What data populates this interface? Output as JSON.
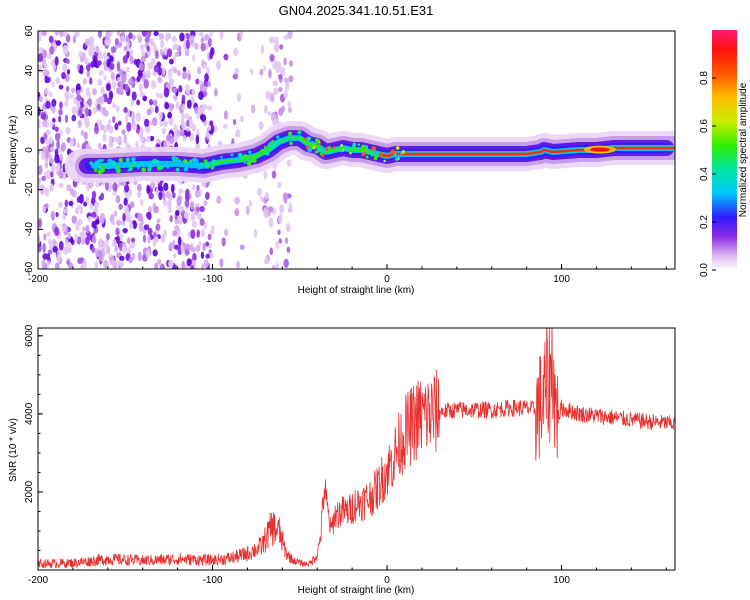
{
  "chart_data": [
    {
      "type": "heatmap",
      "title": "GN04.2025.341.10.51.E31",
      "xlabel": "Height of straight line (km)",
      "ylabel": "Frequency (Hz)",
      "xlim": [
        -200,
        165
      ],
      "ylim": [
        -60,
        60
      ],
      "xticks": [
        -200,
        -100,
        0,
        100
      ],
      "yticks": [
        -60,
        -40,
        -20,
        0,
        20,
        40,
        60
      ],
      "ridge": {
        "x": [
          -172,
          -160,
          -140,
          -120,
          -105,
          -95,
          -85,
          -75,
          -68,
          -62,
          -56,
          -50,
          -45,
          -40,
          -35,
          -30,
          -25,
          -20,
          -15,
          -10,
          -5,
          0,
          5,
          10,
          20,
          40,
          60,
          80,
          88,
          90,
          95,
          110,
          120,
          130,
          150,
          165
        ],
        "y": [
          -8,
          -8,
          -7,
          -7,
          -8,
          -6,
          -5,
          -3,
          0,
          4,
          6,
          6,
          3,
          2,
          -1,
          0,
          1,
          0,
          0,
          -1,
          -2,
          -3,
          -2,
          -2,
          -2,
          -2,
          -2,
          -2,
          -1,
          0,
          -1,
          0,
          0,
          1,
          1,
          1
        ]
      },
      "colorbar": {
        "label": "Normalized spectral amplitude",
        "ticks": [
          "0.0",
          "0.2",
          "0.4",
          "0.6",
          "0.8"
        ],
        "range": [
          0,
          1
        ]
      }
    },
    {
      "type": "line",
      "xlabel": "Height of straight line (km)",
      "ylabel": "SNR (10 * v/v)",
      "xlim": [
        -200,
        165
      ],
      "ylim": [
        0,
        6200
      ],
      "xticks": [
        -200,
        -100,
        0,
        100
      ],
      "yticks": [
        2000,
        4000,
        6000
      ],
      "color": "#e8302f",
      "series": [
        {
          "name": "SNR",
          "x": [
            -200,
            -180,
            -160,
            -140,
            -120,
            -100,
            -90,
            -80,
            -72,
            -66,
            -62,
            -58,
            -54,
            -48,
            -44,
            -40,
            -38,
            -36,
            -34,
            -32,
            -30,
            -26,
            -22,
            -18,
            -14,
            -10,
            -6,
            -2,
            2,
            6,
            10,
            14,
            18,
            22,
            26,
            30,
            40,
            50,
            60,
            70,
            80,
            85,
            88,
            90,
            92,
            94,
            95,
            96,
            98,
            100,
            110,
            120,
            130,
            140,
            150,
            165
          ],
          "y": [
            160,
            180,
            280,
            240,
            280,
            250,
            300,
            420,
            600,
            1100,
            1000,
            450,
            250,
            160,
            170,
            400,
            900,
            2100,
            1500,
            1000,
            1400,
            1500,
            1500,
            1700,
            1750,
            1850,
            2050,
            2400,
            2700,
            3100,
            3500,
            3700,
            3900,
            3950,
            4000,
            4050,
            4100,
            4100,
            4100,
            4150,
            4150,
            4100,
            4200,
            4400,
            4800,
            5000,
            5600,
            4300,
            3900,
            4150,
            4000,
            3950,
            3900,
            3850,
            3800,
            3750
          ]
        }
      ]
    }
  ]
}
